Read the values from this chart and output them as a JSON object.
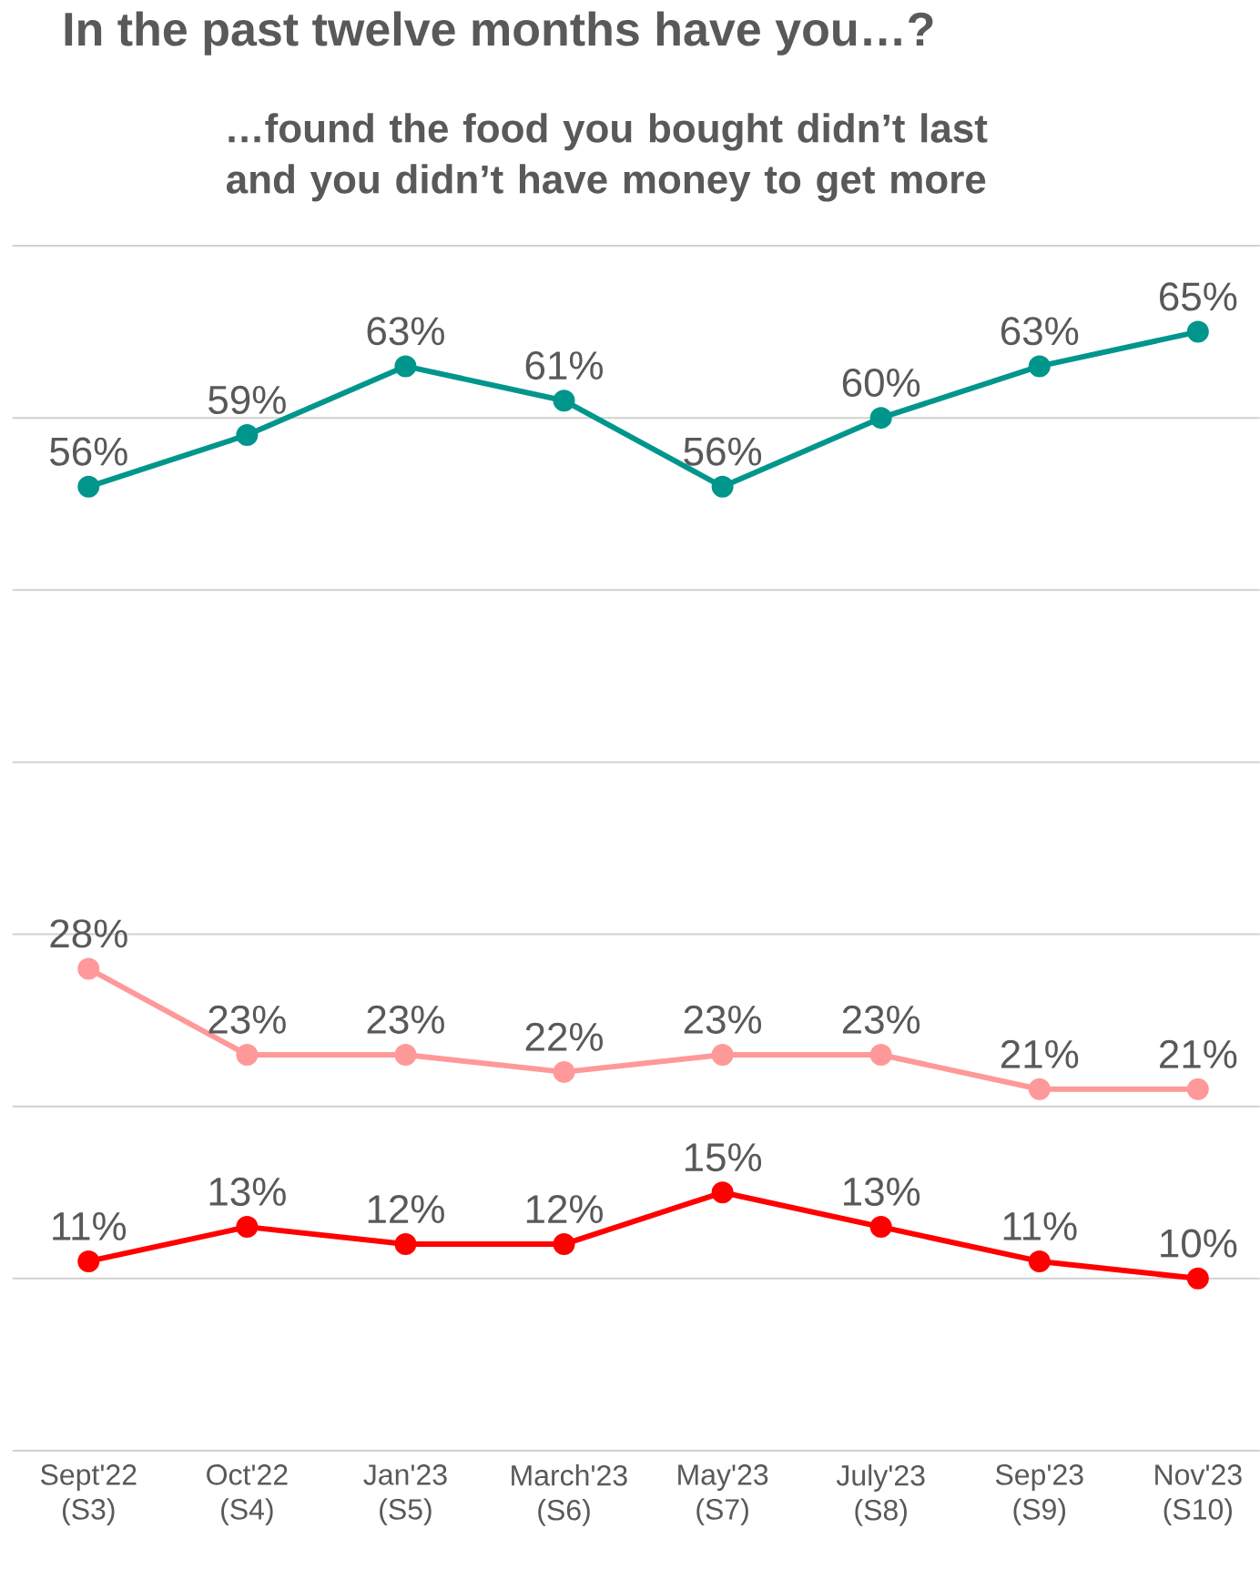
{
  "chart_data": {
    "type": "line",
    "title": "In the past twelve months have you…?",
    "subtitle": "…found the food you bought didn’t last and you didn’t have money to get more",
    "categories": [
      "Sept'22 (S3)",
      "Oct'22 (S4)",
      "Jan'23 (S5)",
      "March'23 (S6)",
      "May'23 (S7)",
      "July'23 (S8)",
      "Sep'23 (S9)",
      "Nov'23 (S10)"
    ],
    "series": [
      {
        "color": "#00968c",
        "values": [
          56,
          59,
          63,
          61,
          56,
          60,
          63,
          65
        ],
        "value_labels": [
          "56%",
          "59%",
          "63%",
          "61%",
          "56%",
          "60%",
          "63%",
          "65%"
        ]
      },
      {
        "color": "#ff9999",
        "values": [
          28,
          23,
          23,
          22,
          23,
          23,
          21,
          21
        ],
        "value_labels": [
          "28%",
          "23%",
          "23%",
          "22%",
          "23%",
          "23%",
          "21%",
          "21%"
        ]
      },
      {
        "color": "#ff0000",
        "values": [
          11,
          13,
          12,
          12,
          15,
          13,
          11,
          10
        ],
        "value_labels": [
          "11%",
          "13%",
          "12%",
          "12%",
          "15%",
          "13%",
          "11%",
          "10%"
        ]
      }
    ],
    "ylim": [
      0,
      70
    ],
    "yticks": [
      {
        "value": 0,
        "label": null
      },
      {
        "value": 10,
        "label": null
      },
      {
        "value": 20,
        "label": null
      },
      {
        "value": 30,
        "label": null
      },
      {
        "value": 40,
        "label": null
      },
      {
        "value": 50,
        "label": null
      },
      {
        "value": 60,
        "label": null
      },
      {
        "value": 70,
        "label": null
      }
    ],
    "grid": "y",
    "tick_labels": "x",
    "marker": "circle",
    "line_style": "solid"
  }
}
